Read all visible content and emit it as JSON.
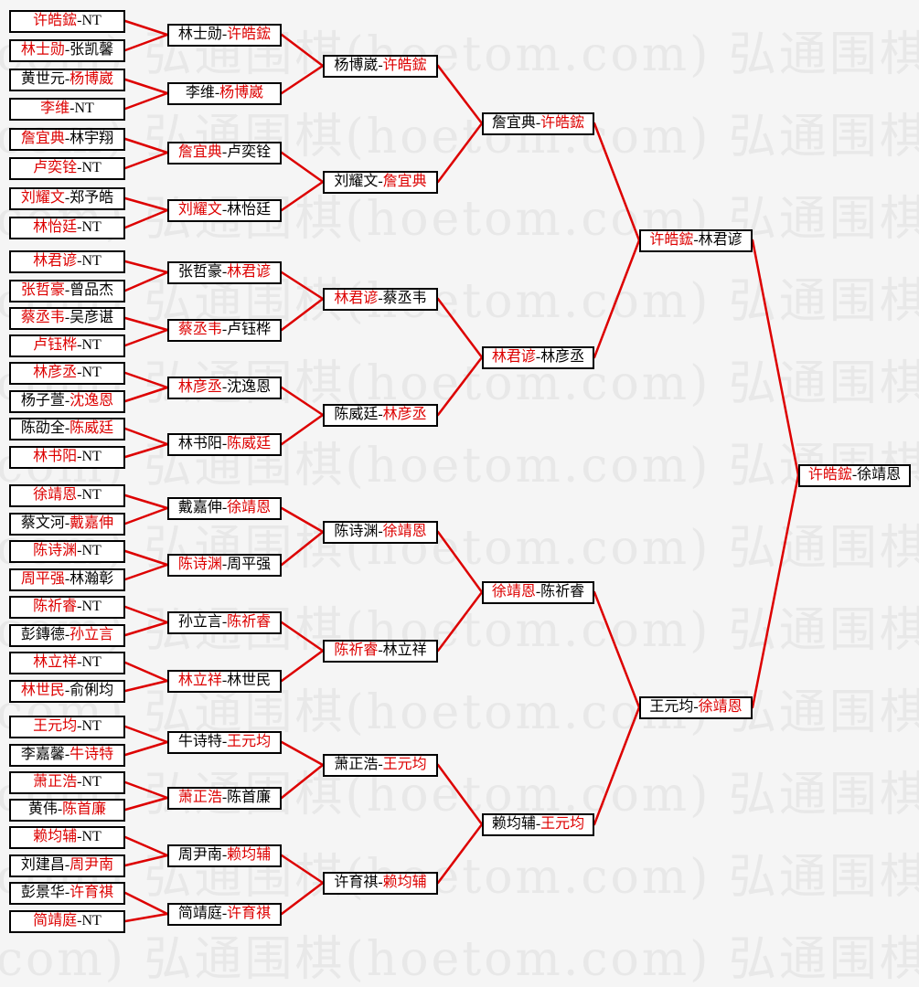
{
  "watermark": {
    "text": "弘通围棋(hoetom.com)"
  },
  "colors": {
    "background": "#f5f5f5",
    "watermark": "#e8e8e8",
    "box_border": "#000000",
    "box_bg": "#ffffff",
    "text": "#000000",
    "winner": "#dd0000",
    "line": "#dd0000"
  },
  "bracket": {
    "rounds": [
      {
        "matches": [
          {
            "p1": "许皓鋐",
            "p2": "NT",
            "winner": "p1"
          },
          {
            "p1": "林士勋",
            "p2": "张凯馨",
            "winner": "p1"
          },
          {
            "p1": "黄世元",
            "p2": "杨博崴",
            "winner": "p2"
          },
          {
            "p1": "李维",
            "p2": "NT",
            "winner": "p1"
          },
          {
            "p1": "詹宜典",
            "p2": "林宇翔",
            "winner": "p1"
          },
          {
            "p1": "卢奕铨",
            "p2": "NT",
            "winner": "p1"
          },
          {
            "p1": "刘耀文",
            "p2": "郑予皓",
            "winner": "p1"
          },
          {
            "p1": "林怡廷",
            "p2": "NT",
            "winner": "p1"
          },
          {
            "p1": "林君谚",
            "p2": "NT",
            "winner": "p1"
          },
          {
            "p1": "张哲豪",
            "p2": "曾品杰",
            "winner": "p1"
          },
          {
            "p1": "蔡丞韦",
            "p2": "吴彦谌",
            "winner": "p1"
          },
          {
            "p1": "卢钰桦",
            "p2": "NT",
            "winner": "p1"
          },
          {
            "p1": "林彦丞",
            "p2": "NT",
            "winner": "p1"
          },
          {
            "p1": "杨子萱",
            "p2": "沈逸恩",
            "winner": "p2"
          },
          {
            "p1": "陈劭全",
            "p2": "陈威廷",
            "winner": "p2"
          },
          {
            "p1": "林书阳",
            "p2": "NT",
            "winner": "p1"
          },
          {
            "p1": "徐靖恩",
            "p2": "NT",
            "winner": "p1"
          },
          {
            "p1": "蔡文河",
            "p2": "戴嘉伸",
            "winner": "p2"
          },
          {
            "p1": "陈诗渊",
            "p2": "NT",
            "winner": "p1"
          },
          {
            "p1": "周平强",
            "p2": "林瀚彰",
            "winner": "p1"
          },
          {
            "p1": "陈祈睿",
            "p2": "NT",
            "winner": "p1"
          },
          {
            "p1": "彭鏄德",
            "p2": "孙立言",
            "winner": "p2"
          },
          {
            "p1": "林立祥",
            "p2": "NT",
            "winner": "p1"
          },
          {
            "p1": "林世民",
            "p2": "俞俐均",
            "winner": "p1"
          },
          {
            "p1": "王元均",
            "p2": "NT",
            "winner": "p1"
          },
          {
            "p1": "李嘉馨",
            "p2": "牛诗特",
            "winner": "p2"
          },
          {
            "p1": "萧正浩",
            "p2": "NT",
            "winner": "p1"
          },
          {
            "p1": "黄伟",
            "p2": "陈首廉",
            "winner": "p2"
          },
          {
            "p1": "赖均辅",
            "p2": "NT",
            "winner": "p1"
          },
          {
            "p1": "刘建昌",
            "p2": "周尹南",
            "winner": "p2"
          },
          {
            "p1": "彭景华",
            "p2": "许育祺",
            "winner": "p2"
          },
          {
            "p1": "简靖庭",
            "p2": "NT",
            "winner": "p1"
          }
        ]
      },
      {
        "matches": [
          {
            "p1": "林士勋",
            "p2": "许皓鋐",
            "winner": "p2"
          },
          {
            "p1": "李维",
            "p2": "杨博崴",
            "winner": "p2"
          },
          {
            "p1": "詹宜典",
            "p2": "卢奕铨",
            "winner": "p1"
          },
          {
            "p1": "刘耀文",
            "p2": "林怡廷",
            "winner": "p1"
          },
          {
            "p1": "张哲豪",
            "p2": "林君谚",
            "winner": "p2"
          },
          {
            "p1": "蔡丞韦",
            "p2": "卢钰桦",
            "winner": "p1"
          },
          {
            "p1": "林彦丞",
            "p2": "沈逸恩",
            "winner": "p1"
          },
          {
            "p1": "林书阳",
            "p2": "陈威廷",
            "winner": "p2"
          },
          {
            "p1": "戴嘉伸",
            "p2": "徐靖恩",
            "winner": "p2"
          },
          {
            "p1": "陈诗渊",
            "p2": "周平强",
            "winner": "p1"
          },
          {
            "p1": "孙立言",
            "p2": "陈祈睿",
            "winner": "p2"
          },
          {
            "p1": "林立祥",
            "p2": "林世民",
            "winner": "p1"
          },
          {
            "p1": "牛诗特",
            "p2": "王元均",
            "winner": "p2"
          },
          {
            "p1": "萧正浩",
            "p2": "陈首廉",
            "winner": "p1"
          },
          {
            "p1": "周尹南",
            "p2": "赖均辅",
            "winner": "p2"
          },
          {
            "p1": "简靖庭",
            "p2": "许育祺",
            "winner": "p2"
          }
        ]
      },
      {
        "matches": [
          {
            "p1": "杨博崴",
            "p2": "许皓鋐",
            "winner": "p2"
          },
          {
            "p1": "刘耀文",
            "p2": "詹宜典",
            "winner": "p2"
          },
          {
            "p1": "林君谚",
            "p2": "蔡丞韦",
            "winner": "p1"
          },
          {
            "p1": "陈威廷",
            "p2": "林彦丞",
            "winner": "p2"
          },
          {
            "p1": "陈诗渊",
            "p2": "徐靖恩",
            "winner": "p2"
          },
          {
            "p1": "陈祈睿",
            "p2": "林立祥",
            "winner": "p1"
          },
          {
            "p1": "萧正浩",
            "p2": "王元均",
            "winner": "p2"
          },
          {
            "p1": "许育祺",
            "p2": "赖均辅",
            "winner": "p2"
          }
        ]
      },
      {
        "matches": [
          {
            "p1": "詹宜典",
            "p2": "许皓鋐",
            "winner": "p2"
          },
          {
            "p1": "林君谚",
            "p2": "林彦丞",
            "winner": "p1"
          },
          {
            "p1": "徐靖恩",
            "p2": "陈祈睿",
            "winner": "p1"
          },
          {
            "p1": "赖均辅",
            "p2": "王元均",
            "winner": "p2"
          }
        ]
      },
      {
        "matches": [
          {
            "p1": "许皓鋐",
            "p2": "林君谚",
            "winner": "p1"
          },
          {
            "p1": "王元均",
            "p2": "徐靖恩",
            "winner": "p2"
          }
        ]
      },
      {
        "matches": [
          {
            "p1": "许皓鋐",
            "p2": "徐靖恩",
            "winner": "p1"
          }
        ]
      }
    ]
  }
}
